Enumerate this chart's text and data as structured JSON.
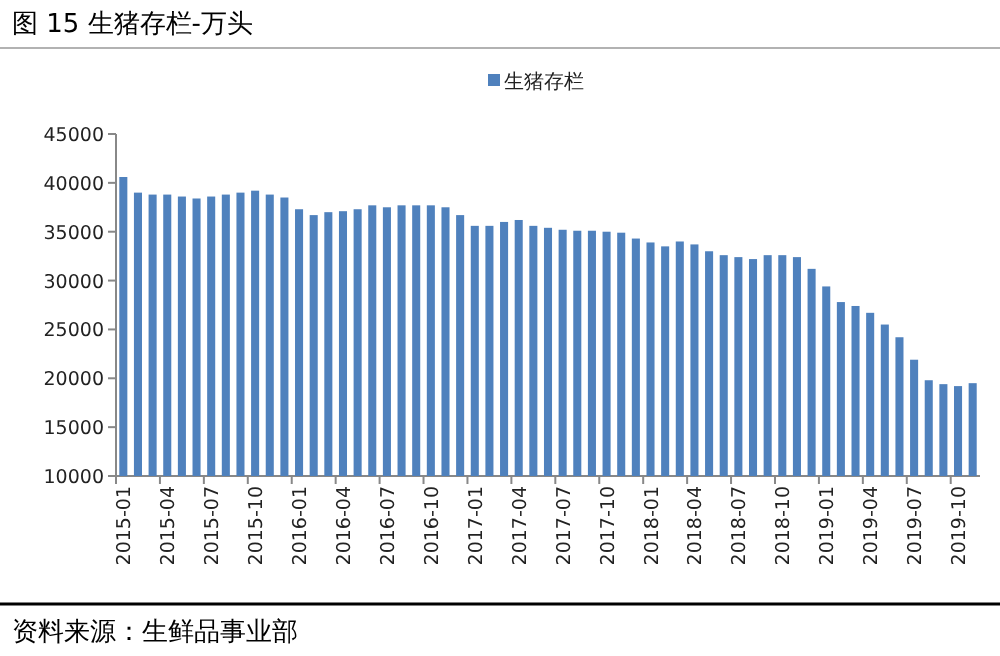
{
  "chart_data": {
    "type": "bar",
    "title": "图 15 生猪存栏-万头",
    "categories": [
      "2015-01",
      null,
      null,
      "2015-04",
      null,
      null,
      "2015-07",
      null,
      null,
      "2015-10",
      null,
      null,
      "2016-01",
      null,
      null,
      "2016-04",
      null,
      null,
      "2016-07",
      null,
      null,
      "2016-10",
      null,
      null,
      "2017-01",
      null,
      null,
      "2017-04",
      null,
      null,
      "2017-07",
      null,
      null,
      "2017-10",
      null,
      null,
      "2018-01",
      null,
      null,
      "2018-04",
      null,
      null,
      "2018-07",
      null,
      null,
      "2018-10",
      null,
      null,
      "2019-01",
      null,
      null,
      "2019-04",
      null,
      null,
      "2019-07",
      null,
      null,
      "2019-10",
      null
    ],
    "series": [
      {
        "name": "生猪存栏",
        "color": "#4f81bd",
        "values": [
          40600,
          39000,
          38800,
          38800,
          38600,
          38400,
          38600,
          38800,
          39000,
          39200,
          38800,
          38500,
          37300,
          36700,
          37000,
          37100,
          37300,
          37700,
          37500,
          37700,
          37700,
          37700,
          37500,
          36700,
          35600,
          35600,
          36000,
          36200,
          35600,
          35400,
          35200,
          35100,
          35100,
          35000,
          34900,
          34300,
          33900,
          33500,
          34000,
          33700,
          33000,
          32600,
          32400,
          32200,
          32600,
          32600,
          32400,
          31200,
          29400,
          27800,
          27400,
          26700,
          25500,
          24200,
          21900,
          19800,
          19400,
          19200,
          19500
        ]
      }
    ],
    "ylim": [
      10000,
      45000
    ],
    "yticks": [
      10000,
      15000,
      20000,
      25000,
      30000,
      35000,
      40000,
      45000
    ],
    "grid": false,
    "legend": "top",
    "annotations": [
      "资料来源：生鲜品事业部"
    ]
  }
}
